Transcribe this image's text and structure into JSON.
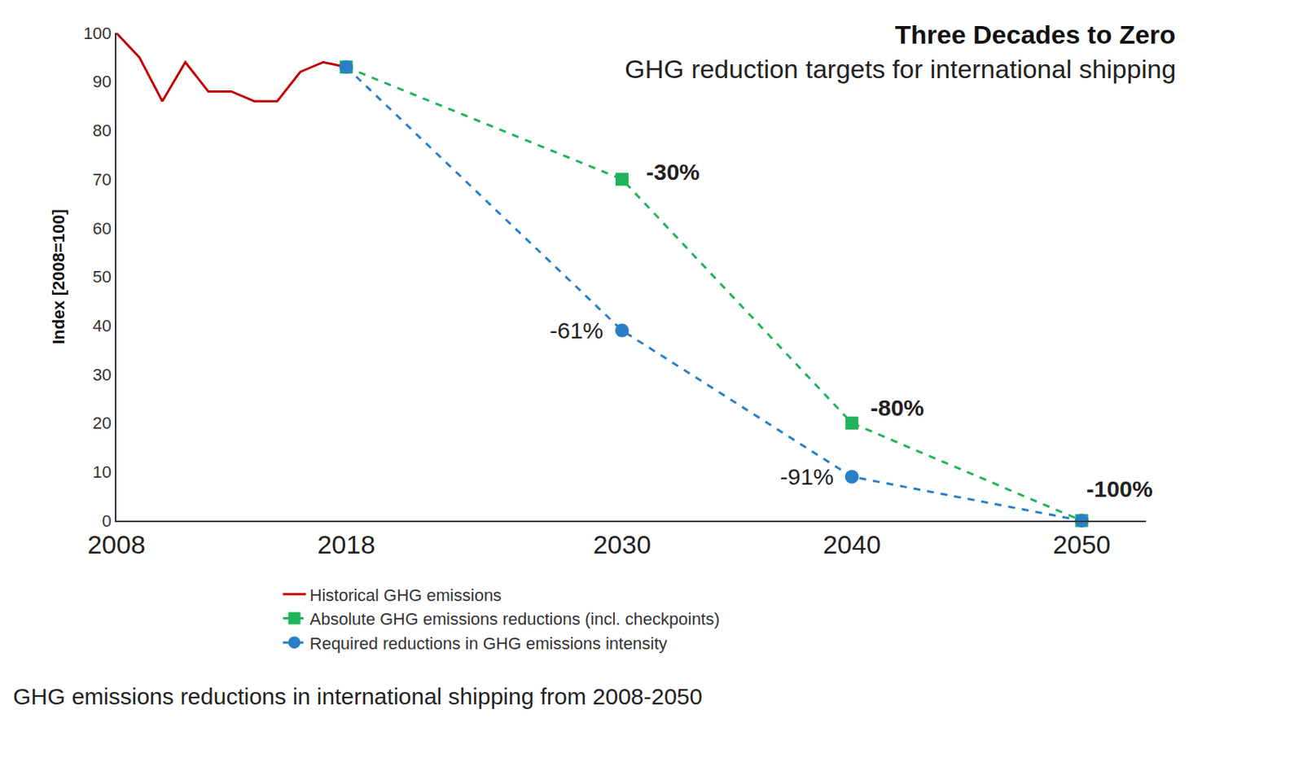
{
  "chart_data": {
    "type": "line",
    "title": "Three Decades to Zero",
    "subtitle": "GHG reduction targets for international shipping",
    "y_label": "Index [2008=100]",
    "caption": "GHG emissions reductions in international shipping from 2008-2050",
    "xlim": [
      2008,
      2052.8
    ],
    "xticks": [
      2008,
      2018,
      2030,
      2040,
      2050
    ],
    "ylim": [
      0,
      100
    ],
    "yticks": [
      0,
      10,
      20,
      30,
      40,
      50,
      60,
      70,
      80,
      90,
      100
    ],
    "grid": false,
    "legend": "bottom",
    "series": [
      {
        "name": "Historical GHG emissions",
        "color": "#c00000",
        "line_style": "solid",
        "marker": "none",
        "x": [
          2008,
          2009,
          2010,
          2011,
          2012,
          2013,
          2014,
          2015,
          2016,
          2017,
          2018
        ],
        "values": [
          100,
          95,
          86,
          94,
          88,
          88,
          86,
          86,
          92,
          94,
          93
        ]
      },
      {
        "name": "Absolute GHG emissions reductions (incl. checkpoints)",
        "color": "#21b35a",
        "line_style": "dash",
        "marker": "square",
        "x": [
          2018,
          2030,
          2040,
          2050
        ],
        "values": [
          93,
          70,
          20,
          0
        ],
        "annotations": [
          {
            "x": 2030,
            "y": 70,
            "text": "-30%"
          },
          {
            "x": 2040,
            "y": 20,
            "text": "-80%"
          },
          {
            "x": 2050,
            "y": 0,
            "text": "-100%"
          }
        ]
      },
      {
        "name": "Required reductions in GHG emissions intensity",
        "color": "#2a7fc8",
        "line_style": "dash",
        "marker": "circle",
        "x": [
          2018,
          2030,
          2040,
          2050
        ],
        "values": [
          93,
          39,
          9,
          0
        ],
        "annotations": [
          {
            "x": 2030,
            "y": 39,
            "text": "-61%"
          },
          {
            "x": 2040,
            "y": 9,
            "text": "-91%"
          }
        ]
      }
    ]
  }
}
